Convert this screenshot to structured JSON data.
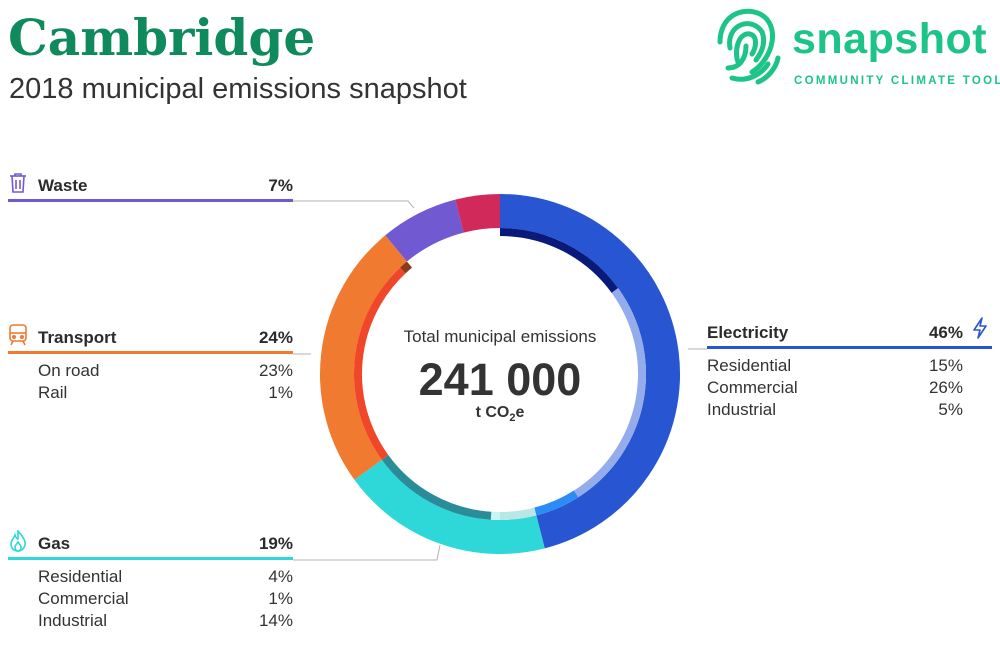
{
  "header": {
    "title": "Cambridge",
    "subtitle": "2018 municipal emissions snapshot"
  },
  "logo": {
    "wordmark": "snapshot",
    "tagline": "COMMUNITY CLIMATE TOOL",
    "icon": "fingerprint-icon",
    "color": "#1dc487"
  },
  "chart_data": {
    "type": "pie",
    "center": {
      "label": "Total municipal emissions",
      "value": "241 000",
      "unit_prefix": "t CO",
      "unit_sub": "2",
      "unit_suffix": "e"
    },
    "categories": [
      {
        "name": "Electricity",
        "value": 46,
        "value_label": "46%",
        "color": "#2855d1",
        "icon": "lightning-icon",
        "subcategories": [
          {
            "name": "Residential",
            "value": 15,
            "value_label": "15%",
            "color": "#0a1a7a"
          },
          {
            "name": "Commercial",
            "value": 26,
            "value_label": "26%",
            "color": "#94abec"
          },
          {
            "name": "Industrial",
            "value": 5,
            "value_label": "5%",
            "color": "#2b8cf5"
          }
        ]
      },
      {
        "name": "Gas",
        "value": 19,
        "value_label": "19%",
        "color": "#2ed8d8",
        "icon": "flame-icon",
        "subcategories": [
          {
            "name": "Residential",
            "value": 4,
            "value_label": "4%",
            "color": "#b8e8e6"
          },
          {
            "name": "Commercial",
            "value": 1,
            "value_label": "1%",
            "color": "#c8f6f6"
          },
          {
            "name": "Industrial",
            "value": 14,
            "value_label": "14%",
            "color": "#2a8c98"
          }
        ]
      },
      {
        "name": "Transport",
        "value": 24,
        "value_label": "24%",
        "color": "#f07a30",
        "icon": "train-icon",
        "subcategories": [
          {
            "name": "On road",
            "value": 23,
            "value_label": "23%",
            "color": "#f0462a"
          },
          {
            "name": "Rail",
            "value": 1,
            "value_label": "1%",
            "color": "#8a3b1a"
          }
        ]
      },
      {
        "name": "Waste",
        "value": 7,
        "value_label": "7%",
        "color": "#7159d1",
        "icon": "trash-icon",
        "subcategories": []
      },
      {
        "name": "",
        "value": 4,
        "value_label": "",
        "color": "#d12a5a",
        "icon": "",
        "subcategories": []
      }
    ]
  }
}
